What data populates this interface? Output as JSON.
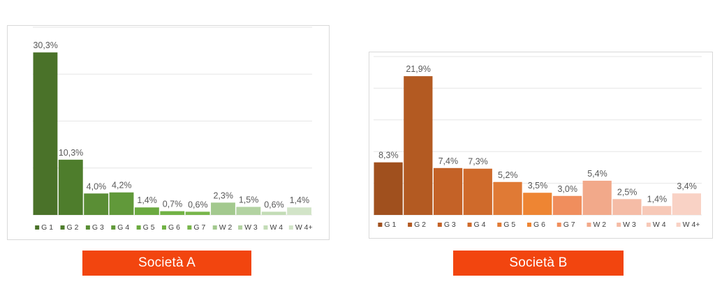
{
  "captions": {
    "a": "Società A",
    "b": "Società B"
  },
  "colors": {
    "caption_bg": "#F2450F",
    "gridline": "#e6e6e6"
  },
  "chart_data": [
    {
      "type": "bar",
      "title": "",
      "xlabel": "",
      "ylabel": "",
      "ylim": [
        0,
        35
      ],
      "grid": true,
      "legend": "bottom",
      "categories": [
        "G 1",
        "G 2",
        "G 3",
        "G 4",
        "G 5",
        "G 6",
        "G 7",
        "W 2",
        "W 3",
        "W 4",
        "W 4+"
      ],
      "values": [
        30.3,
        10.3,
        4.0,
        4.2,
        1.4,
        0.7,
        0.6,
        2.3,
        1.5,
        0.6,
        1.4
      ],
      "labels": [
        "30,3%",
        "10,3%",
        "4,0%",
        "4,2%",
        "1,4%",
        "0,7%",
        "0,6%",
        "2,3%",
        "1,5%",
        "0,6%",
        "1,4%"
      ],
      "colors": [
        "#4A7229",
        "#4E7D2C",
        "#5A8E35",
        "#61993A",
        "#6BAA40",
        "#71B245",
        "#78B64B",
        "#A3C98E",
        "#B3D3A2",
        "#C3DCB6",
        "#D2E4C8"
      ]
    },
    {
      "type": "bar",
      "title": "",
      "xlabel": "",
      "ylabel": "",
      "ylim": [
        0,
        25
      ],
      "grid": true,
      "legend": "bottom",
      "categories": [
        "G 1",
        "G 2",
        "G 3",
        "G 4",
        "G 5",
        "G 6",
        "G 7",
        "W 2",
        "W 3",
        "W 4",
        "W 4+"
      ],
      "values": [
        8.3,
        21.9,
        7.4,
        7.3,
        5.2,
        3.5,
        3.0,
        5.4,
        2.5,
        1.4,
        3.4
      ],
      "labels": [
        "8,3%",
        "21,9%",
        "7,4%",
        "7,3%",
        "5,2%",
        "3,5%",
        "3,0%",
        "5,4%",
        "2,5%",
        "1,4%",
        "3,4%"
      ],
      "colors": [
        "#A0501E",
        "#B35A22",
        "#C46227",
        "#CF6A2B",
        "#E07A35",
        "#EE8533",
        "#F08E5D",
        "#F2A98A",
        "#F5BCA6",
        "#F7C9B8",
        "#F9D2C5"
      ]
    }
  ]
}
